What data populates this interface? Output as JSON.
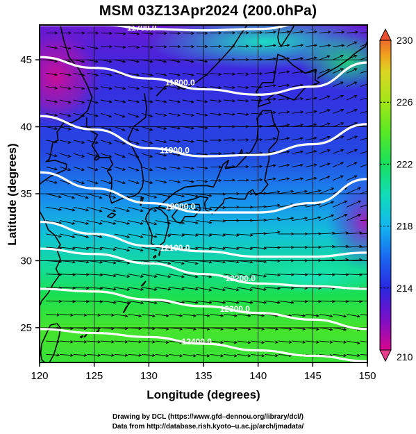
{
  "title": "MSM 03Z13Apr2024 (200.0hPa)",
  "chart_data": {
    "type": "heatmap",
    "title": "MSM 03Z13Apr2024 (200.0hPa)",
    "xlabel": "Longitude (degrees)",
    "ylabel": "Latitude  (degrees)",
    "xlim": [
      120,
      150
    ],
    "ylim": [
      22.4,
      47.6
    ],
    "x_ticks": [
      120,
      125,
      130,
      135,
      140,
      145,
      150
    ],
    "y_ticks": [
      25,
      30,
      35,
      40,
      45
    ],
    "grid": true,
    "colorbar": {
      "min": 210,
      "max": 230,
      "ticks": [
        210,
        214,
        218,
        222,
        226,
        230
      ],
      "colors": [
        "#d8068e",
        "#7a10c8",
        "#2a28e0",
        "#1a68f0",
        "#13b6ee",
        "#12dcb8",
        "#18e060",
        "#56e826",
        "#a2e618",
        "#dcd622",
        "#f0a420",
        "#ec6a2a"
      ]
    },
    "contours": [
      {
        "label": "11700.0",
        "lat_at_lon": [
          [
            120,
            47.6
          ],
          [
            126,
            47.6
          ],
          [
            130,
            47.3
          ],
          [
            135,
            47.2
          ],
          [
            140,
            47.3
          ],
          [
            145,
            47.8
          ],
          [
            150,
            48.2
          ]
        ]
      },
      {
        "label": "11800.0",
        "lat_at_lon": [
          [
            120,
            45.2
          ],
          [
            125,
            44.4
          ],
          [
            130,
            43.6
          ],
          [
            135,
            42.8
          ],
          [
            140,
            42.4
          ],
          [
            145,
            43.0
          ],
          [
            150,
            44.8
          ]
        ]
      },
      {
        "label": "11900.0",
        "lat_at_lon": [
          [
            120,
            40.8
          ],
          [
            125,
            39.8
          ],
          [
            130,
            38.4
          ],
          [
            135,
            37.8
          ],
          [
            140,
            37.9
          ],
          [
            145,
            38.7
          ],
          [
            150,
            40.2
          ]
        ]
      },
      {
        "label": "12000.0",
        "lat_at_lon": [
          [
            120,
            36.6
          ],
          [
            125,
            35.4
          ],
          [
            130,
            34.3
          ],
          [
            135,
            33.6
          ],
          [
            140,
            33.6
          ],
          [
            145,
            34.3
          ],
          [
            150,
            36.1
          ]
        ]
      },
      {
        "label": "12100.0",
        "lat_at_lon": [
          [
            120,
            32.9
          ],
          [
            125,
            32.0
          ],
          [
            130,
            31.1
          ],
          [
            135,
            30.7
          ],
          [
            140,
            30.3
          ],
          [
            145,
            30.3
          ],
          [
            150,
            30.6
          ]
        ]
      },
      {
        "label": "12200.0",
        "lat_at_lon": [
          [
            120,
            30.9
          ],
          [
            125,
            30.5
          ],
          [
            130,
            29.8
          ],
          [
            135,
            29.0
          ],
          [
            140,
            28.3
          ],
          [
            145,
            28.1
          ],
          [
            150,
            27.9
          ]
        ]
      },
      {
        "label": "12300.0",
        "lat_at_lon": [
          [
            120,
            27.9
          ],
          [
            125,
            27.7
          ],
          [
            130,
            27.1
          ],
          [
            135,
            26.6
          ],
          [
            140,
            26.1
          ],
          [
            145,
            25.6
          ],
          [
            150,
            24.9
          ]
        ]
      },
      {
        "label": "12400.0",
        "lat_at_lon": [
          [
            120,
            24.9
          ],
          [
            125,
            24.6
          ],
          [
            130,
            24.3
          ],
          [
            135,
            23.8
          ],
          [
            140,
            23.3
          ],
          [
            145,
            22.9
          ],
          [
            150,
            22.5
          ]
        ]
      }
    ]
  },
  "credits": {
    "line1": "Drawing by DCL (https://www.gfd–dennou.org/library/dcl/)",
    "line2": "Data from http://database.rish.kyoto–u.ac.jp/arch/jmadata/"
  }
}
